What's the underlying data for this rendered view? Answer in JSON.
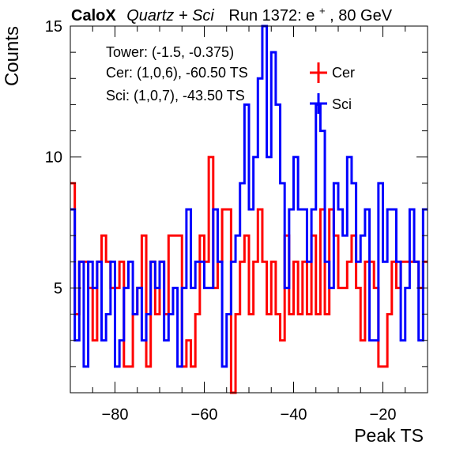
{
  "header": {
    "brand": "CaloX",
    "detector": "Quartz + Sci",
    "run_label": "Run 1372: e",
    "run_sup": "+",
    "run_energy": ", 80 GeV"
  },
  "info": {
    "tower": "Tower: (-1.5, -0.375)",
    "cer": "Cer: (1,0,6), -60.50 TS",
    "sci": "Sci: (1,0,7), -43.50 TS"
  },
  "legend": {
    "placement": "top-right",
    "entries": [
      {
        "label": "Cer",
        "color": "#ff0000"
      },
      {
        "label": "Sci",
        "color": "#0000ff"
      }
    ]
  },
  "chart_data": {
    "type": "histogram",
    "xlabel": "Peak TS",
    "ylabel": "Counts",
    "xlim": [
      -90,
      -10
    ],
    "ylim": [
      1,
      15
    ],
    "bin_width": 1,
    "x_ticks": [
      -80,
      -60,
      -40,
      -20
    ],
    "y_ticks": [
      5,
      10,
      15
    ],
    "bin_start": -90,
    "series": [
      {
        "name": "Cer",
        "color": "#ff0000",
        "values": [
          9,
          4,
          6,
          6,
          5,
          3,
          6,
          7,
          6,
          5,
          5,
          6,
          2,
          2,
          4,
          5,
          7,
          2,
          6,
          4,
          6,
          4,
          7,
          7,
          7,
          2,
          3,
          2,
          4,
          7,
          6,
          10,
          5,
          6,
          8,
          8,
          1,
          4,
          6,
          7,
          4,
          6,
          8,
          6,
          4,
          6,
          4,
          3,
          7,
          4,
          6,
          4,
          6,
          4,
          7,
          4,
          8,
          4,
          8,
          7,
          5,
          5,
          6,
          7,
          5,
          3,
          6,
          6,
          5,
          2,
          2,
          4,
          6,
          5,
          6,
          6,
          6,
          6,
          5,
          6
        ]
      },
      {
        "name": "Sci",
        "color": "#0000ff",
        "values": [
          8,
          3,
          6,
          2,
          6,
          5,
          6,
          3,
          4,
          6,
          2,
          3,
          5,
          6,
          4,
          5,
          3,
          4,
          6,
          5,
          6,
          3,
          4,
          5,
          2,
          5,
          8,
          5,
          6,
          6,
          5,
          5,
          8,
          6,
          2,
          4,
          6,
          7,
          9,
          12,
          8,
          10,
          13,
          15,
          10,
          14,
          12,
          9,
          5,
          8,
          10,
          8,
          8,
          6,
          8,
          12,
          11,
          6,
          5,
          9,
          8,
          7,
          10,
          9,
          6,
          7,
          8,
          3,
          3,
          9,
          6,
          8,
          8,
          6,
          3,
          5,
          8,
          6,
          3,
          8
        ]
      }
    ]
  }
}
